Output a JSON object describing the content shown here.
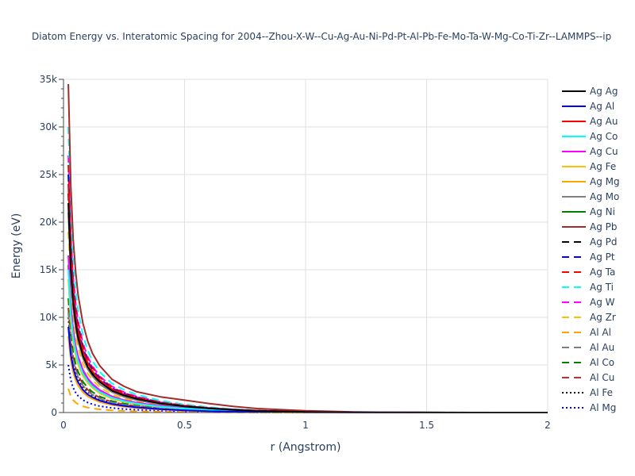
{
  "chart_data": {
    "type": "line",
    "title": "Diatom Energy vs. Interatomic Spacing for 2004--Zhou-X-W--Cu-Ag-Au-Ni-Pd-Pt-Al-Pb-Fe-Mo-Ta-W-Mg-Co-Ti-Zr--LAMMPS--ip",
    "xlabel": "r (Angstrom)",
    "ylabel": "Energy (eV)",
    "xlim": [
      0,
      2
    ],
    "ylim": [
      0,
      35000
    ],
    "x_ticks": [
      0,
      0.5,
      1,
      1.5,
      2
    ],
    "x_tick_labels": [
      "0",
      "0.5",
      "1",
      "1.5",
      "2"
    ],
    "y_ticks": [
      0,
      5000,
      10000,
      15000,
      20000,
      25000,
      30000,
      35000
    ],
    "y_tick_labels": [
      "0",
      "5k",
      "10k",
      "15k",
      "20k",
      "25k",
      "30k",
      "35k"
    ],
    "grid": true,
    "legend_position": "right",
    "x": [
      0.02,
      0.03,
      0.04,
      0.05,
      0.06,
      0.08,
      0.1,
      0.12,
      0.15,
      0.2,
      0.25,
      0.3,
      0.4,
      0.5,
      0.6,
      0.7,
      0.8,
      1.0,
      1.2,
      1.4,
      1.6,
      1.8,
      2.0
    ],
    "series": [
      {
        "name": "Ag Ag",
        "color": "#000000",
        "dash": "solid",
        "values": [
          22000,
          15000,
          11500,
          9400,
          7900,
          6000,
          4800,
          4000,
          3200,
          2300,
          1800,
          1450,
          950,
          650,
          430,
          280,
          170,
          70,
          25,
          10,
          4,
          2,
          1
        ]
      },
      {
        "name": "Ag Al",
        "color": "#0000ff",
        "dash": "solid",
        "values": [
          9000,
          6100,
          4700,
          3800,
          3200,
          2400,
          1900,
          1600,
          1250,
          900,
          700,
          550,
          350,
          230,
          150,
          95,
          60,
          25,
          10,
          4,
          2,
          1,
          0
        ]
      },
      {
        "name": "Ag Au",
        "color": "#ff0000",
        "dash": "solid",
        "values": [
          24000,
          16500,
          12600,
          10200,
          8600,
          6500,
          5200,
          4300,
          3400,
          2450,
          1900,
          1520,
          1000,
          680,
          450,
          290,
          180,
          75,
          28,
          11,
          4,
          2,
          1
        ]
      },
      {
        "name": "Ag Co",
        "color": "#00ffff",
        "dash": "solid",
        "values": [
          15000,
          10300,
          7900,
          6400,
          5400,
          4100,
          3300,
          2750,
          2150,
          1550,
          1200,
          950,
          620,
          420,
          280,
          180,
          110,
          45,
          17,
          7,
          3,
          1,
          0
        ]
      },
      {
        "name": "Ag Cu",
        "color": "#ff00ff",
        "dash": "solid",
        "values": [
          16500,
          11300,
          8700,
          7000,
          5900,
          4500,
          3600,
          3000,
          2350,
          1700,
          1300,
          1050,
          680,
          460,
          300,
          195,
          120,
          50,
          19,
          7,
          3,
          1,
          0
        ]
      },
      {
        "name": "Ag Fe",
        "color": "#ffc000",
        "dash": "solid",
        "values": [
          14000,
          9600,
          7400,
          6000,
          5050,
          3850,
          3100,
          2600,
          2000,
          1450,
          1120,
          890,
          580,
          390,
          260,
          170,
          105,
          42,
          16,
          6,
          2,
          1,
          0
        ]
      },
      {
        "name": "Ag Mg",
        "color": "#ffa500",
        "dash": "solid",
        "values": [
          8000,
          5500,
          4200,
          3400,
          2850,
          2150,
          1700,
          1420,
          1100,
          790,
          610,
          480,
          310,
          205,
          135,
          85,
          52,
          20,
          8,
          3,
          1,
          0,
          0
        ]
      },
      {
        "name": "Ag Mo",
        "color": "#808080",
        "dash": "solid",
        "values": [
          21000,
          14400,
          11000,
          8900,
          7500,
          5700,
          4550,
          3800,
          2950,
          2150,
          1650,
          1320,
          860,
          580,
          390,
          250,
          155,
          63,
          24,
          9,
          3,
          1,
          0
        ]
      },
      {
        "name": "Ag Ni",
        "color": "#008000",
        "dash": "solid",
        "values": [
          15500,
          10600,
          8100,
          6600,
          5550,
          4200,
          3350,
          2800,
          2200,
          1600,
          1230,
          980,
          640,
          430,
          285,
          185,
          115,
          46,
          18,
          7,
          3,
          1,
          0
        ]
      },
      {
        "name": "Ag Pb",
        "color": "#a52a2a",
        "dash": "solid",
        "values": [
          34500,
          23800,
          18200,
          14800,
          12400,
          9400,
          7500,
          6200,
          4900,
          3500,
          2750,
          2200,
          1650,
          1300,
          950,
          650,
          420,
          180,
          70,
          27,
          10,
          4,
          1
        ]
      },
      {
        "name": "Ag Pd",
        "color": "#000000",
        "dash": "dash",
        "values": [
          23000,
          15800,
          12100,
          9800,
          8200,
          6200,
          5000,
          4150,
          3250,
          2350,
          1820,
          1460,
          960,
          650,
          435,
          285,
          175,
          72,
          27,
          10,
          4,
          1,
          0
        ]
      },
      {
        "name": "Ag Pt",
        "color": "#0000ff",
        "dash": "dash",
        "values": [
          25000,
          17200,
          13100,
          10600,
          8950,
          6800,
          5450,
          4500,
          3550,
          2550,
          1980,
          1580,
          1040,
          700,
          470,
          305,
          190,
          78,
          29,
          11,
          4,
          1,
          0
        ]
      },
      {
        "name": "Ag Ta",
        "color": "#ff0000",
        "dash": "dash",
        "values": [
          26000,
          17900,
          13700,
          11100,
          9300,
          7050,
          5650,
          4700,
          3700,
          2650,
          2060,
          1650,
          1080,
          730,
          490,
          320,
          200,
          82,
          31,
          12,
          4,
          1,
          0
        ]
      },
      {
        "name": "Ag Ti",
        "color": "#00ffff",
        "dash": "dash",
        "values": [
          30000,
          20700,
          15800,
          12800,
          10750,
          8150,
          6500,
          5400,
          4250,
          3050,
          2380,
          1900,
          1250,
          850,
          570,
          370,
          230,
          95,
          36,
          14,
          5,
          2,
          0
        ]
      },
      {
        "name": "Ag W",
        "color": "#ff00ff",
        "dash": "dash",
        "values": [
          27000,
          18600,
          14200,
          11500,
          9650,
          7300,
          5850,
          4850,
          3800,
          2750,
          2130,
          1700,
          1120,
          760,
          510,
          330,
          205,
          85,
          32,
          12,
          4,
          1,
          0
        ]
      },
      {
        "name": "Ag Zr",
        "color": "#ffc000",
        "dash": "dash",
        "values": [
          19000,
          13000,
          10000,
          8100,
          6800,
          5150,
          4100,
          3400,
          2650,
          1900,
          1480,
          1180,
          770,
          520,
          350,
          225,
          140,
          58,
          22,
          8,
          3,
          1,
          0
        ]
      },
      {
        "name": "Al Al",
        "color": "#ffa500",
        "dash": "dash",
        "values": [
          2500,
          1700,
          1300,
          1050,
          880,
          660,
          520,
          430,
          330,
          230,
          170,
          130,
          80,
          50,
          30,
          18,
          10,
          4,
          1,
          0,
          0,
          0,
          0
        ]
      },
      {
        "name": "Al Au",
        "color": "#808080",
        "dash": "dash",
        "values": [
          10500,
          7200,
          5500,
          4450,
          3750,
          2850,
          2250,
          1880,
          1450,
          1050,
          810,
          640,
          420,
          280,
          185,
          120,
          74,
          30,
          11,
          4,
          1,
          0,
          0
        ]
      },
      {
        "name": "Al Co",
        "color": "#008000",
        "dash": "dash",
        "values": [
          12000,
          8250,
          6300,
          5100,
          4300,
          3250,
          2600,
          2150,
          1680,
          1200,
          930,
          740,
          480,
          320,
          210,
          135,
          84,
          34,
          13,
          5,
          2,
          0,
          0
        ]
      },
      {
        "name": "Al Cu",
        "color": "#c03030",
        "dash": "dash",
        "values": [
          11000,
          7550,
          5800,
          4700,
          3950,
          3000,
          2400,
          1990,
          1550,
          1110,
          860,
          680,
          440,
          295,
          195,
          125,
          77,
          31,
          12,
          4,
          1,
          0,
          0
        ]
      },
      {
        "name": "Al Fe",
        "color": "#000000",
        "dash": "dot",
        "values": [
          10000,
          6900,
          5250,
          4250,
          3580,
          2720,
          2170,
          1800,
          1400,
          1000,
          780,
          620,
          400,
          270,
          178,
          115,
          71,
          28,
          11,
          4,
          1,
          0,
          0
        ]
      },
      {
        "name": "Al Mg",
        "color": "#0000ff",
        "dash": "dot",
        "values": [
          5000,
          3400,
          2600,
          2100,
          1760,
          1320,
          1050,
          870,
          670,
          480,
          365,
          285,
          180,
          118,
          76,
          48,
          29,
          11,
          4,
          1,
          0,
          0,
          0
        ]
      }
    ]
  }
}
